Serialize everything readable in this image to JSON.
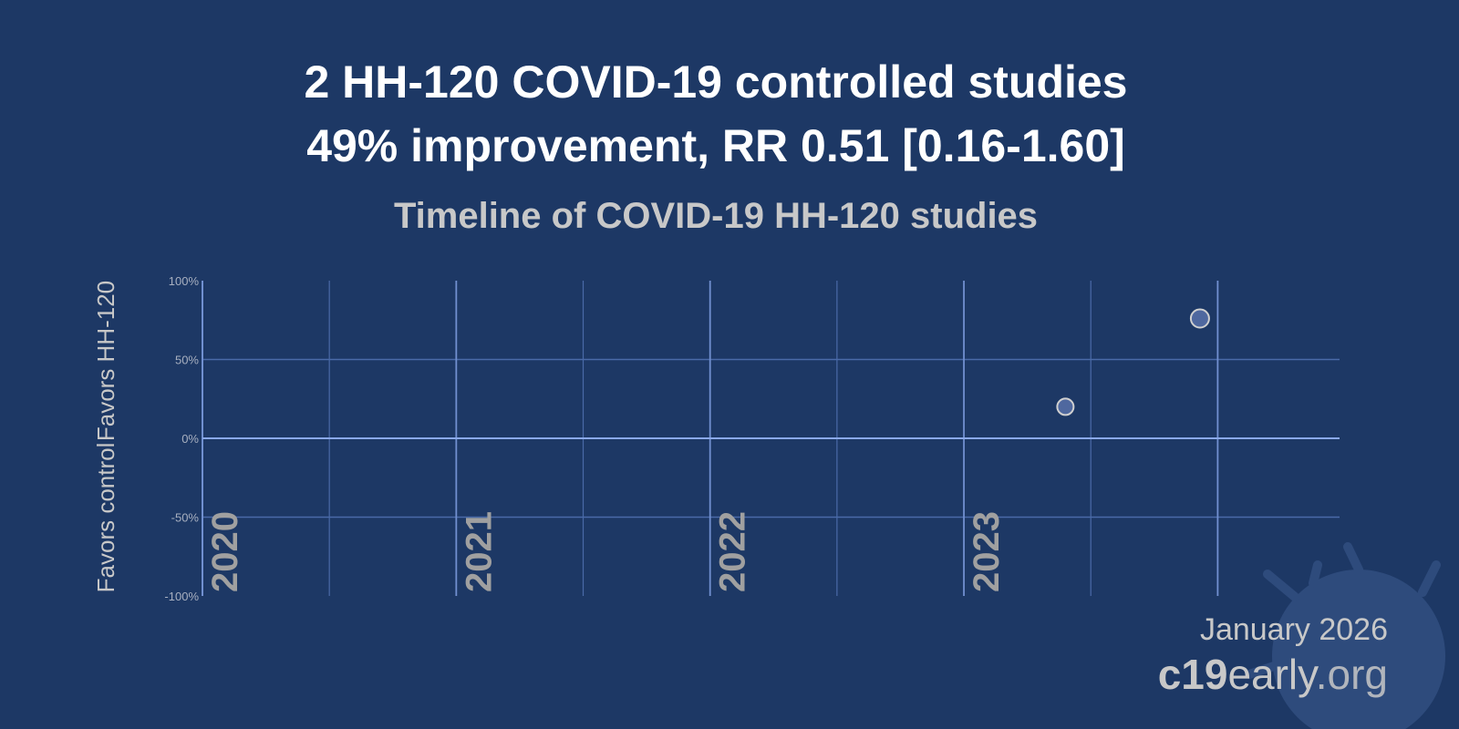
{
  "header": {
    "title_line1": "2 HH-120 COVID-19 controlled studies",
    "title_line2": "49% improvement, RR 0.51 [0.16-1.60]",
    "subtitle": "Timeline of COVID-19 HH-120 studies"
  },
  "chart_data": {
    "type": "scatter",
    "title": "Timeline of COVID-19 HH-120 studies",
    "ylabel_top": "Favors HH-120",
    "ylabel_bottom": "Favors control",
    "yticks": [
      "100%",
      "50%",
      "0%",
      "-50%",
      "-100%"
    ],
    "ytick_values": [
      100,
      50,
      0,
      -50,
      -100
    ],
    "ylim": [
      -100,
      100
    ],
    "xlim": [
      2020.0,
      2024.48
    ],
    "xticks": [
      "2020",
      "2021",
      "2022",
      "2023"
    ],
    "xtick_values": [
      2020,
      2021,
      2022,
      2023
    ],
    "grid": true,
    "points": [
      {
        "x": 2023.4,
        "y": 20
      },
      {
        "x": 2023.93,
        "y": 76
      }
    ],
    "colors": {
      "point_fill": "#4f689f",
      "point_stroke": "#d0d0d0",
      "grid": "#4a6aa8",
      "zero_line": "#8aa8e8"
    }
  },
  "footer": {
    "date": "January 2026",
    "brand_bold": "c19",
    "brand_mid": "early",
    "brand_end": ".org"
  }
}
